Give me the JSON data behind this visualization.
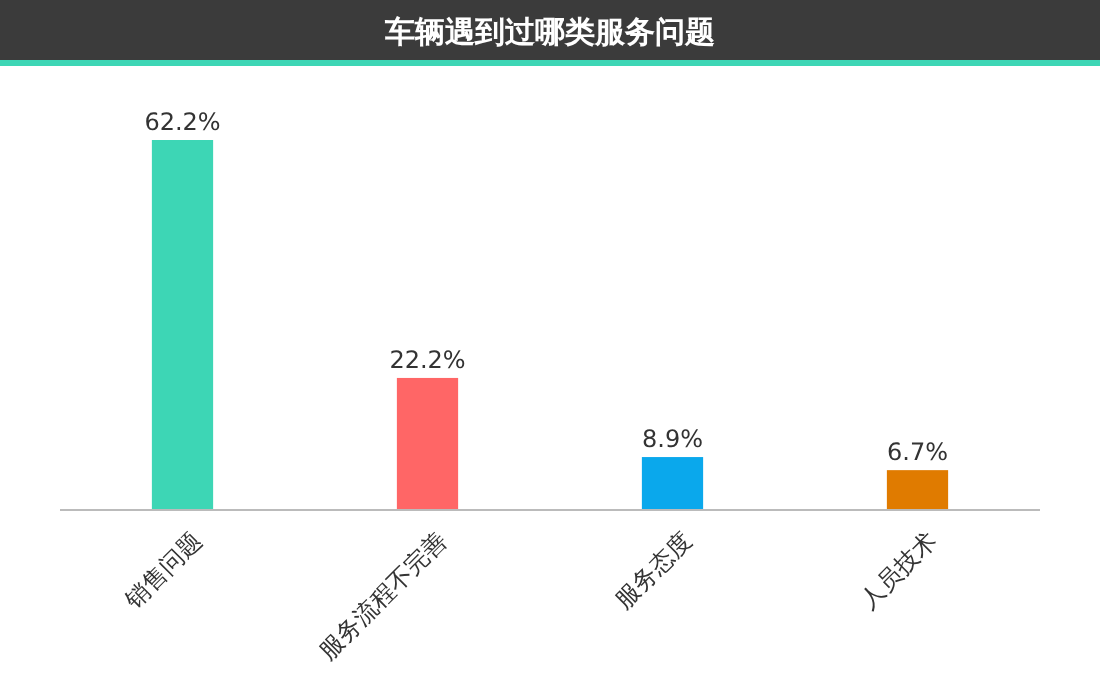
{
  "chart_data": {
    "type": "bar",
    "title": "车辆遇到过哪类服务问题",
    "categories": [
      "销售问题",
      "服务流程不完善",
      "服务态度",
      "人员技术"
    ],
    "values": [
      62.2,
      22.2,
      8.9,
      6.7
    ],
    "colors": [
      "#3dd6b5",
      "#ff6666",
      "#0aa8ec",
      "#e07b00"
    ],
    "value_labels": [
      "62.2%",
      "22.2%",
      "8.9%",
      "6.7%"
    ]
  }
}
